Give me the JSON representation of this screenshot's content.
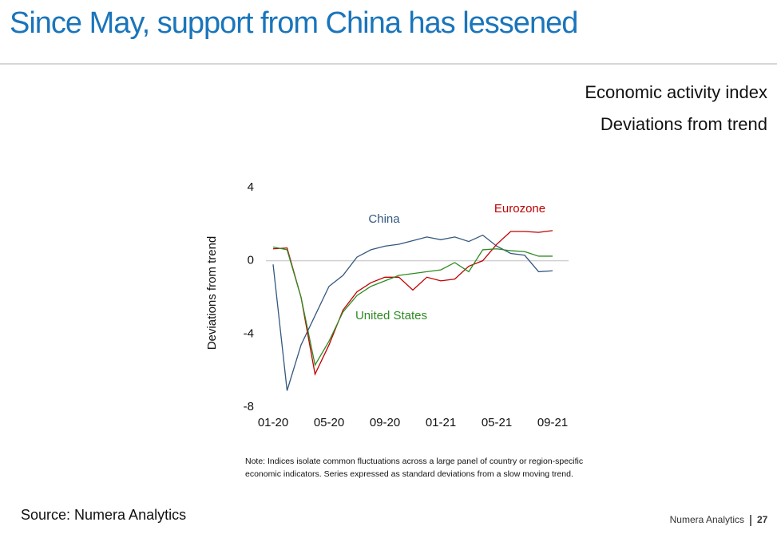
{
  "header": {
    "title": "Since May, support from China has lessened"
  },
  "chart_data": {
    "type": "line",
    "title": "Economic activity index",
    "subtitle": "Deviations from trend",
    "y_label": "Deviations from trend",
    "categories": [
      "01-20",
      null,
      null,
      null,
      "05-20",
      null,
      null,
      null,
      "09-20",
      null,
      null,
      null,
      "01-21",
      null,
      null,
      null,
      "05-21",
      null,
      null,
      null,
      "09-21"
    ],
    "series": [
      {
        "name": "China",
        "color": "#34577f",
        "values": [
          -0.2,
          -7.1,
          -4.6,
          -3.0,
          -1.4,
          -0.8,
          0.2,
          0.6,
          0.8,
          0.9,
          1.1,
          1.3,
          1.15,
          1.3,
          1.05,
          1.4,
          0.8,
          0.4,
          0.3,
          -0.6,
          -0.55
        ]
      },
      {
        "name": "Eurozone",
        "color": "#c00000",
        "values": [
          0.65,
          0.7,
          -2.0,
          -6.2,
          -4.6,
          -2.7,
          -1.7,
          -1.2,
          -0.9,
          -0.9,
          -1.6,
          -0.9,
          -1.1,
          -1.0,
          -0.3,
          0.0,
          0.9,
          1.6,
          1.6,
          1.55,
          1.65
        ]
      },
      {
        "name": "United States",
        "color": "#2e8b22",
        "values": [
          0.75,
          0.6,
          -2.0,
          -5.7,
          -4.4,
          -2.8,
          -1.9,
          -1.4,
          -1.1,
          -0.8,
          -0.7,
          -0.6,
          -0.5,
          -0.1,
          -0.6,
          0.6,
          0.65,
          0.55,
          0.5,
          0.25,
          0.25
        ]
      }
    ],
    "ylim": [
      -8,
      4
    ],
    "yticks": [
      -8,
      -4,
      0,
      4
    ],
    "zero_line": true,
    "note": [
      "Note: Indices isolate common fluctuations across a large panel of country or region-specific",
      "economic indicators. Series expressed as standard deviations from a slow moving trend."
    ]
  },
  "footer": {
    "source": "Source: Numera Analytics",
    "brand": "Numera Analytics",
    "page": "27"
  }
}
